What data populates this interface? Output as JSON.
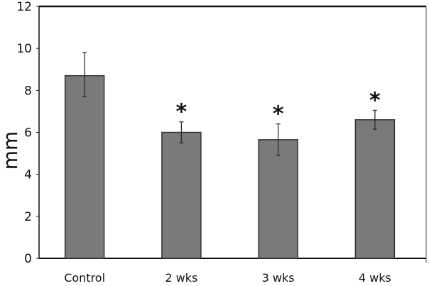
{
  "chart_data": {
    "type": "bar",
    "title": "",
    "xlabel": "",
    "ylabel": "mm",
    "ylim": [
      0,
      12
    ],
    "yticks": [
      0,
      2,
      4,
      6,
      8,
      10,
      12
    ],
    "ytick_labels": [
      "0",
      "2",
      "4",
      "6",
      "8",
      "10",
      "12"
    ],
    "categories": [
      "Control",
      "2 wks",
      "3 wks",
      "4 wks"
    ],
    "values": [
      8.7,
      6.0,
      5.65,
      6.6
    ],
    "error_upper": [
      9.8,
      6.5,
      6.4,
      7.05
    ],
    "error_lower": [
      7.7,
      5.5,
      4.9,
      6.15
    ],
    "significance": [
      "",
      "*",
      "*",
      "*"
    ],
    "grid": false,
    "bar_color": "#7a7a7a",
    "bar_edge_color": "#333333"
  }
}
